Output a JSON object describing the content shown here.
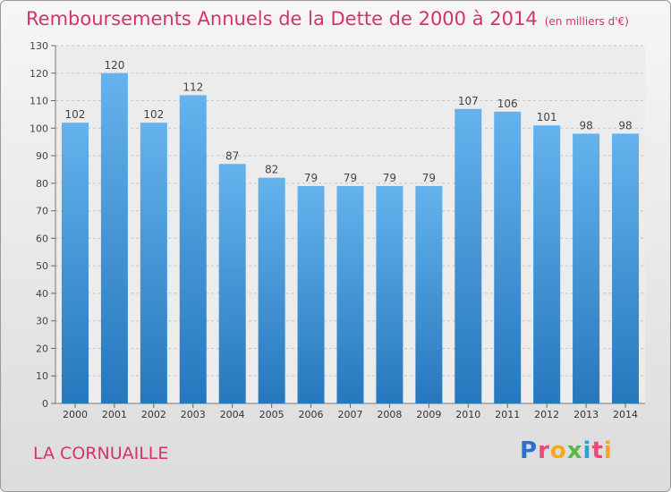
{
  "title": "Remboursements Annuels de la Dette de 2000 à 2014",
  "unit": "(en milliers d'€)",
  "place": "LA CORNUAILLE",
  "logo": [
    "P",
    "r",
    "o",
    "x",
    "i",
    "t",
    "i"
  ],
  "colors": {
    "accent": "#d6336c",
    "bar": "#3d91d6"
  },
  "chart_data": {
    "type": "bar",
    "title": "Remboursements Annuels de la Dette de 2000 à 2014",
    "xlabel": "",
    "ylabel": "",
    "ylim": [
      0,
      130
    ],
    "yticks": [
      0,
      10,
      20,
      30,
      40,
      50,
      60,
      70,
      80,
      90,
      100,
      110,
      120,
      130
    ],
    "grid": true,
    "categories": [
      "2000",
      "2001",
      "2002",
      "2003",
      "2004",
      "2005",
      "2006",
      "2007",
      "2008",
      "2009",
      "2010",
      "2011",
      "2012",
      "2013",
      "2014"
    ],
    "values": [
      102,
      120,
      102,
      112,
      87,
      82,
      79,
      79,
      79,
      79,
      107,
      106,
      101,
      98,
      98
    ]
  }
}
